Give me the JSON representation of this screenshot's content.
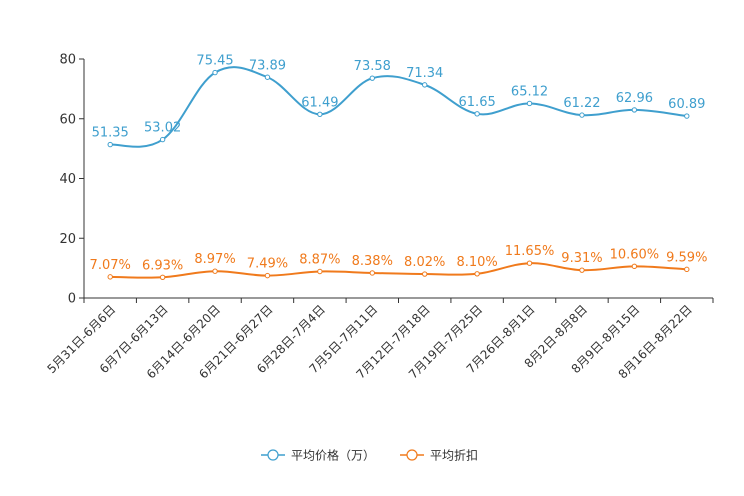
{
  "chart_data": {
    "type": "line",
    "title": "",
    "xlabel": "",
    "ylabel": "",
    "ylim": [
      0,
      80
    ],
    "yticks": [
      "0",
      "20",
      "40",
      "60",
      "80"
    ],
    "categories": [
      "5月31日-6月6日",
      "6月7日-6月13日",
      "6月14日-6月20日",
      "6月21日-6月27日",
      "6月28日-7月4日",
      "7月5日-7月11日",
      "7月12日-7月18日",
      "7月19日-7月25日",
      "7月26日-8月1日",
      "8月2日-8月8日",
      "8月9日-8月15日",
      "8月16日-8月22日"
    ],
    "series": [
      {
        "name": "平均价格（万）",
        "color": "#3f9fce",
        "values": [
          51.35,
          53.02,
          75.45,
          73.89,
          61.49,
          73.58,
          71.34,
          61.65,
          65.12,
          61.22,
          62.96,
          60.89
        ],
        "labels": [
          "51.35",
          "53.02",
          "75.45",
          "73.89",
          "61.49",
          "73.58",
          "71.34",
          "61.65",
          "65.12",
          "61.22",
          "62.96",
          "60.89"
        ]
      },
      {
        "name": "平均折扣",
        "color": "#f07a1c",
        "values": [
          7.07,
          6.93,
          8.97,
          7.49,
          8.87,
          8.38,
          8.02,
          8.1,
          11.65,
          9.31,
          10.6,
          9.59
        ],
        "labels": [
          "7.07%",
          "6.93%",
          "8.97%",
          "7.49%",
          "8.87%",
          "8.38%",
          "8.02%",
          "8.10%",
          "11.65%",
          "9.31%",
          "10.60%",
          "9.59%"
        ]
      }
    ],
    "legend_position": "bottom-center",
    "grid": false
  }
}
